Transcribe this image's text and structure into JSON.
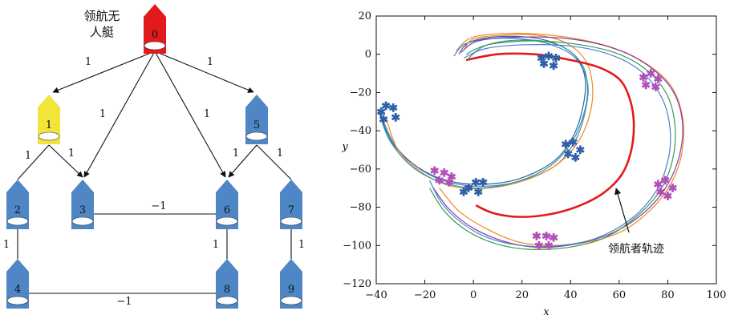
{
  "graph": {
    "leader_label_line1": "领航无",
    "leader_label_line2": "人艇",
    "nodes": [
      {
        "id": "0",
        "label": "0",
        "role": "leader",
        "color": "#e31a1c"
      },
      {
        "id": "1",
        "label": "1",
        "role": "follower",
        "color": "#f2e53a"
      },
      {
        "id": "2",
        "label": "2",
        "role": "follower",
        "color": "#4f86c6"
      },
      {
        "id": "3",
        "label": "3",
        "role": "follower",
        "color": "#4f86c6"
      },
      {
        "id": "4",
        "label": "4",
        "role": "follower",
        "color": "#4f86c6"
      },
      {
        "id": "5",
        "label": "5",
        "role": "follower",
        "color": "#4f86c6"
      },
      {
        "id": "6",
        "label": "6",
        "role": "follower",
        "color": "#4f86c6"
      },
      {
        "id": "7",
        "label": "7",
        "role": "follower",
        "color": "#4f86c6"
      },
      {
        "id": "8",
        "label": "8",
        "role": "follower",
        "color": "#4f86c6"
      },
      {
        "id": "9",
        "label": "9",
        "role": "follower",
        "color": "#4f86c6"
      }
    ],
    "edges": [
      {
        "from": "0",
        "to": "1",
        "weight": "1",
        "directed": true
      },
      {
        "from": "0",
        "to": "3",
        "weight": "1",
        "directed": true
      },
      {
        "from": "0",
        "to": "6",
        "weight": "1",
        "directed": true
      },
      {
        "from": "0",
        "to": "5",
        "weight": "1",
        "directed": true
      },
      {
        "from": "1",
        "to": "2",
        "weight": "1",
        "directed": false
      },
      {
        "from": "1",
        "to": "3",
        "weight": "1",
        "directed": true
      },
      {
        "from": "5",
        "to": "6",
        "weight": "1",
        "directed": true
      },
      {
        "from": "5",
        "to": "7",
        "weight": "1",
        "directed": false
      },
      {
        "from": "3",
        "to": "6",
        "weight": "−1",
        "directed": false
      },
      {
        "from": "2",
        "to": "4",
        "weight": "1",
        "directed": false
      },
      {
        "from": "6",
        "to": "8",
        "weight": "1",
        "directed": false
      },
      {
        "from": "7",
        "to": "9",
        "weight": "1",
        "directed": false
      },
      {
        "from": "4",
        "to": "8",
        "weight": "−1",
        "directed": false
      }
    ]
  },
  "chart_data": {
    "type": "line",
    "xlabel": "x",
    "ylabel": "y",
    "xlim": [
      -40,
      100
    ],
    "ylim": [
      -120,
      20
    ],
    "xticks": [
      -40,
      -20,
      0,
      20,
      40,
      60,
      80,
      100
    ],
    "yticks": [
      20,
      0,
      -20,
      -40,
      -60,
      -80,
      -100,
      -120
    ],
    "annotation": "领航者轨迹",
    "leader_color": "#e31a1c",
    "series": [
      {
        "color": "#e31a1c",
        "role": "leader",
        "points": [
          [
            -3,
            -3
          ],
          [
            10,
            0
          ],
          [
            25,
            0
          ],
          [
            40,
            -3
          ],
          [
            52,
            -7
          ],
          [
            60,
            -13
          ],
          [
            64,
            -22
          ],
          [
            66,
            -35
          ],
          [
            65,
            -50
          ],
          [
            61,
            -63
          ],
          [
            53,
            -73
          ],
          [
            42,
            -80
          ],
          [
            30,
            -84
          ],
          [
            18,
            -85
          ],
          [
            8,
            -83
          ],
          [
            1,
            -79
          ]
        ]
      },
      {
        "color": "#4f7fd0",
        "role": "follower",
        "points": [
          [
            -8,
            -1
          ],
          [
            -4,
            5
          ],
          [
            5,
            8
          ],
          [
            20,
            8
          ],
          [
            32,
            5
          ],
          [
            42,
            -2
          ],
          [
            47,
            -15
          ],
          [
            46,
            -30
          ],
          [
            42,
            -45
          ],
          [
            34,
            -58
          ],
          [
            20,
            -66
          ],
          [
            5,
            -69
          ],
          [
            -10,
            -67
          ],
          [
            -22,
            -60
          ],
          [
            -32,
            -48
          ],
          [
            -38,
            -32
          ]
        ]
      },
      {
        "color": "#2e5fa8",
        "role": "follower",
        "points": [
          [
            -6,
            0
          ],
          [
            -2,
            6
          ],
          [
            8,
            9
          ],
          [
            22,
            9
          ],
          [
            33,
            6
          ],
          [
            42,
            -1
          ],
          [
            46,
            -13
          ],
          [
            45,
            -28
          ],
          [
            41,
            -43
          ],
          [
            33,
            -56
          ],
          [
            19,
            -65
          ],
          [
            4,
            -68
          ],
          [
            -11,
            -66
          ],
          [
            -23,
            -59
          ],
          [
            -33,
            -47
          ],
          [
            -39,
            -30
          ]
        ]
      },
      {
        "color": "#f08a24",
        "role": "follower",
        "points": [
          [
            -4,
            2
          ],
          [
            0,
            8
          ],
          [
            12,
            10
          ],
          [
            26,
            10
          ],
          [
            38,
            6
          ],
          [
            46,
            -3
          ],
          [
            49,
            -16
          ],
          [
            48,
            -31
          ],
          [
            43,
            -46
          ],
          [
            34,
            -58
          ],
          [
            21,
            -66
          ],
          [
            6,
            -70
          ],
          [
            -9,
            -69
          ],
          [
            -21,
            -62
          ],
          [
            -31,
            -50
          ],
          [
            -36,
            -33
          ]
        ]
      },
      {
        "color": "#2a9d8f",
        "role": "follower",
        "points": [
          [
            -2,
            -2
          ],
          [
            4,
            4
          ],
          [
            14,
            7
          ],
          [
            28,
            7
          ],
          [
            38,
            3
          ],
          [
            45,
            -6
          ],
          [
            47,
            -19
          ],
          [
            45,
            -33
          ],
          [
            40,
            -47
          ],
          [
            31,
            -59
          ],
          [
            17,
            -67
          ],
          [
            2,
            -70
          ],
          [
            -13,
            -67
          ],
          [
            -25,
            -59
          ],
          [
            -34,
            -46
          ],
          [
            -38,
            -34
          ]
        ]
      },
      {
        "color": "#f08a24",
        "role": "follower",
        "points": [
          [
            -7,
            2
          ],
          [
            0,
            9
          ],
          [
            18,
            11
          ],
          [
            38,
            9
          ],
          [
            56,
            4
          ],
          [
            70,
            -4
          ],
          [
            81,
            -16
          ],
          [
            86,
            -32
          ],
          [
            86,
            -50
          ],
          [
            82,
            -66
          ],
          [
            74,
            -80
          ],
          [
            62,
            -92
          ],
          [
            48,
            -98
          ],
          [
            32,
            -100
          ],
          [
            18,
            -98
          ],
          [
            5,
            -91
          ],
          [
            -6,
            -82
          ],
          [
            -14,
            -70
          ]
        ]
      },
      {
        "color": "#7b3fb0",
        "role": "follower",
        "points": [
          [
            -5,
            1
          ],
          [
            2,
            7
          ],
          [
            20,
            9
          ],
          [
            40,
            8
          ],
          [
            58,
            3
          ],
          [
            72,
            -6
          ],
          [
            82,
            -19
          ],
          [
            86,
            -35
          ],
          [
            85,
            -52
          ],
          [
            80,
            -68
          ],
          [
            71,
            -82
          ],
          [
            58,
            -93
          ],
          [
            43,
            -99
          ],
          [
            27,
            -101
          ],
          [
            13,
            -98
          ],
          [
            0,
            -91
          ],
          [
            -10,
            -81
          ],
          [
            -17,
            -69
          ]
        ]
      },
      {
        "color": "#3b9b4a",
        "role": "follower",
        "points": [
          [
            -3,
            0
          ],
          [
            6,
            5
          ],
          [
            24,
            7
          ],
          [
            44,
            5
          ],
          [
            60,
            0
          ],
          [
            72,
            -9
          ],
          [
            80,
            -22
          ],
          [
            83,
            -38
          ],
          [
            82,
            -55
          ],
          [
            77,
            -71
          ],
          [
            67,
            -85
          ],
          [
            54,
            -96
          ],
          [
            39,
            -101
          ],
          [
            23,
            -102
          ],
          [
            9,
            -99
          ],
          [
            -3,
            -92
          ],
          [
            -12,
            -82
          ],
          [
            -18,
            -70
          ]
        ]
      },
      {
        "color": "#4f7fd0",
        "role": "follower",
        "points": [
          [
            -4,
            -2
          ],
          [
            5,
            3
          ],
          [
            22,
            5
          ],
          [
            42,
            4
          ],
          [
            58,
            -1
          ],
          [
            70,
            -10
          ],
          [
            78,
            -24
          ],
          [
            81,
            -40
          ],
          [
            80,
            -56
          ],
          [
            75,
            -72
          ],
          [
            65,
            -86
          ],
          [
            51,
            -96
          ],
          [
            36,
            -100
          ],
          [
            20,
            -100
          ],
          [
            6,
            -96
          ],
          [
            -5,
            -88
          ],
          [
            -13,
            -78
          ],
          [
            -18,
            -66
          ]
        ]
      }
    ],
    "star_markers": [
      {
        "color": "#2e5fa8",
        "points": [
          [
            28,
            -2
          ],
          [
            31,
            -1
          ],
          [
            34,
            -2
          ],
          [
            29,
            -5
          ],
          [
            33,
            -6
          ],
          [
            -38,
            -30
          ],
          [
            -36,
            -27
          ],
          [
            -33,
            -28
          ],
          [
            -37,
            -34
          ],
          [
            -32,
            -33
          ],
          [
            38,
            -47
          ],
          [
            41,
            -46
          ],
          [
            44,
            -50
          ],
          [
            39,
            -52
          ],
          [
            42,
            -54
          ],
          [
            1,
            -67
          ],
          [
            4,
            -67
          ],
          [
            -2,
            -70
          ],
          [
            2,
            -72
          ],
          [
            -4,
            -72
          ]
        ]
      },
      {
        "color": "#b04fb8",
        "points": [
          [
            70,
            -12
          ],
          [
            73,
            -10
          ],
          [
            76,
            -13
          ],
          [
            71,
            -16
          ],
          [
            75,
            -17
          ],
          [
            76,
            -68
          ],
          [
            79,
            -66
          ],
          [
            82,
            -70
          ],
          [
            77,
            -72
          ],
          [
            80,
            -74
          ],
          [
            26,
            -95
          ],
          [
            30,
            -95
          ],
          [
            33,
            -96
          ],
          [
            27,
            -100
          ],
          [
            31,
            -100
          ],
          [
            -16,
            -61
          ],
          [
            -12,
            -62
          ],
          [
            -9,
            -64
          ],
          [
            -14,
            -66
          ],
          [
            -10,
            -67
          ]
        ]
      }
    ]
  }
}
